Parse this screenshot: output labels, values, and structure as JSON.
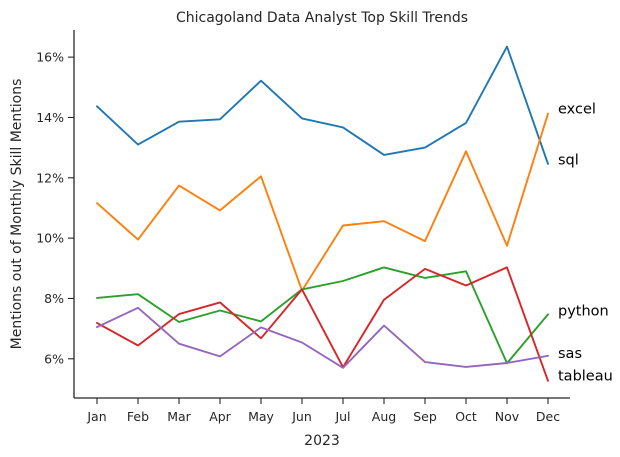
{
  "chart_data": {
    "type": "line",
    "title": "Chicagoland Data Analyst Top Skill Trends",
    "xlabel": "2023",
    "ylabel": "Mentions out of Monthly Skill Mentions",
    "categories": [
      "Jan",
      "Feb",
      "Mar",
      "Apr",
      "May",
      "Jun",
      "Jul",
      "Aug",
      "Sep",
      "Oct",
      "Nov",
      "Dec"
    ],
    "ylim": [
      4.7,
      16.9
    ],
    "yticks": [
      6,
      8,
      10,
      12,
      14,
      16
    ],
    "ytick_labels": [
      "6%",
      "8%",
      "10%",
      "12%",
      "14%",
      "16%"
    ],
    "grid": false,
    "legend": "none (series labelled at right end of lines)",
    "series": [
      {
        "name": "sql",
        "color": "#1f77b4",
        "values": [
          14.37,
          13.1,
          13.86,
          13.94,
          15.22,
          13.97,
          13.67,
          12.76,
          13.0,
          13.82,
          16.35,
          12.46
        ]
      },
      {
        "name": "excel",
        "color": "#ff7f0e",
        "values": [
          11.16,
          9.95,
          11.74,
          10.92,
          12.05,
          8.26,
          10.42,
          10.56,
          9.9,
          12.88,
          9.75,
          14.13
        ]
      },
      {
        "name": "python",
        "color": "#2ca02c",
        "values": [
          8.02,
          8.14,
          7.22,
          7.6,
          7.24,
          8.3,
          8.58,
          9.03,
          8.68,
          8.9,
          5.85,
          7.47
        ]
      },
      {
        "name": "tableau",
        "color": "#d62728",
        "values": [
          7.19,
          6.44,
          7.48,
          7.87,
          6.68,
          8.3,
          5.72,
          7.96,
          8.98,
          8.43,
          9.03,
          5.27
        ]
      },
      {
        "name": "sas",
        "color": "#9467bd",
        "values": [
          7.05,
          7.69,
          6.5,
          6.08,
          7.04,
          6.54,
          5.7,
          7.1,
          5.89,
          5.73,
          5.86,
          6.1
        ]
      }
    ],
    "end_labels": [
      {
        "text": "excel",
        "y": 14.3
      },
      {
        "text": "sql",
        "y": 12.6
      },
      {
        "text": "python",
        "y": 7.6
      },
      {
        "text": "sas",
        "y": 6.2
      },
      {
        "text": "tableau",
        "y": 5.45
      }
    ]
  }
}
